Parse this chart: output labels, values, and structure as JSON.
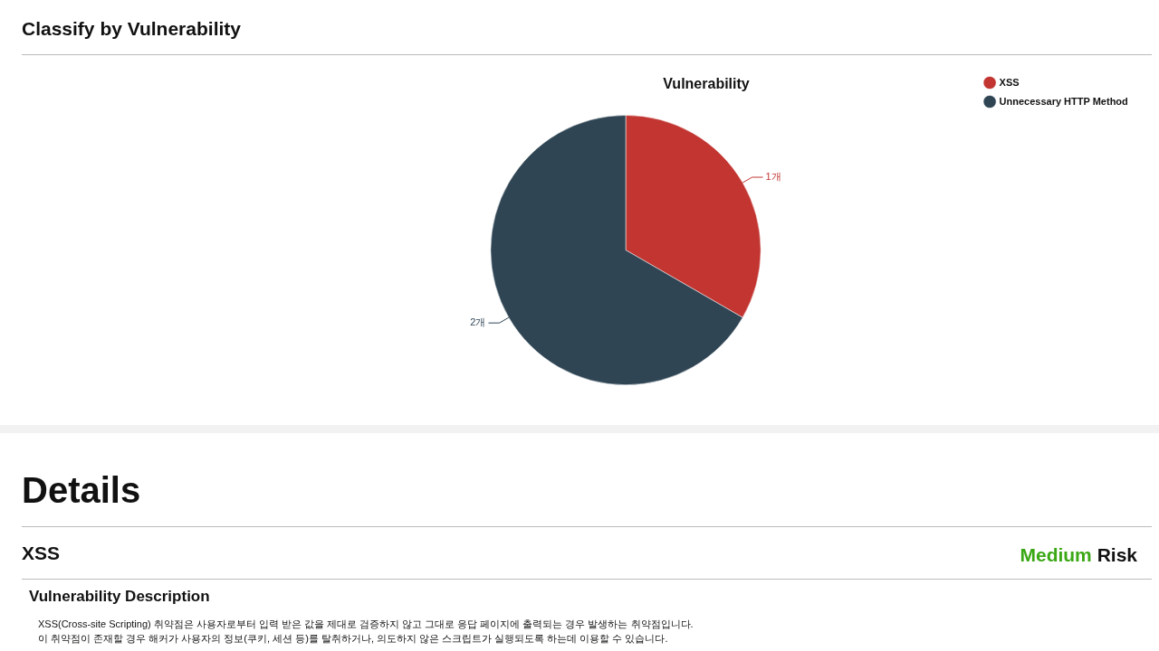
{
  "chart_data": {
    "type": "pie",
    "title": "Vulnerability",
    "categories": [
      "XSS",
      "Unnecessary HTTP Method"
    ],
    "values": [
      1,
      2
    ],
    "colors": [
      "#c23531",
      "#2f4554"
    ],
    "value_labels": [
      "1개",
      "2개"
    ],
    "legend": "top right",
    "annotations": [
      "Classify by Vulnerability",
      "Details",
      "XSS",
      "Medium Risk",
      "Vulnerability Description",
      "XSS(Cross-site Scripting) 취약점은 사용자로부터 입력 받은 값을 제대로 검증하지 않고 그대로 응답 페이지에 출력되는 경우 발생하는 취약점입니다.",
      "이 취약점이 존재할 경우 해커가 사용자의 정보(쿠키, 세션 등)를 탈취하거나, 의도하지 않은 스크립트가 실행되도록 하는데 이용할 수 있습니다."
    ]
  }
}
